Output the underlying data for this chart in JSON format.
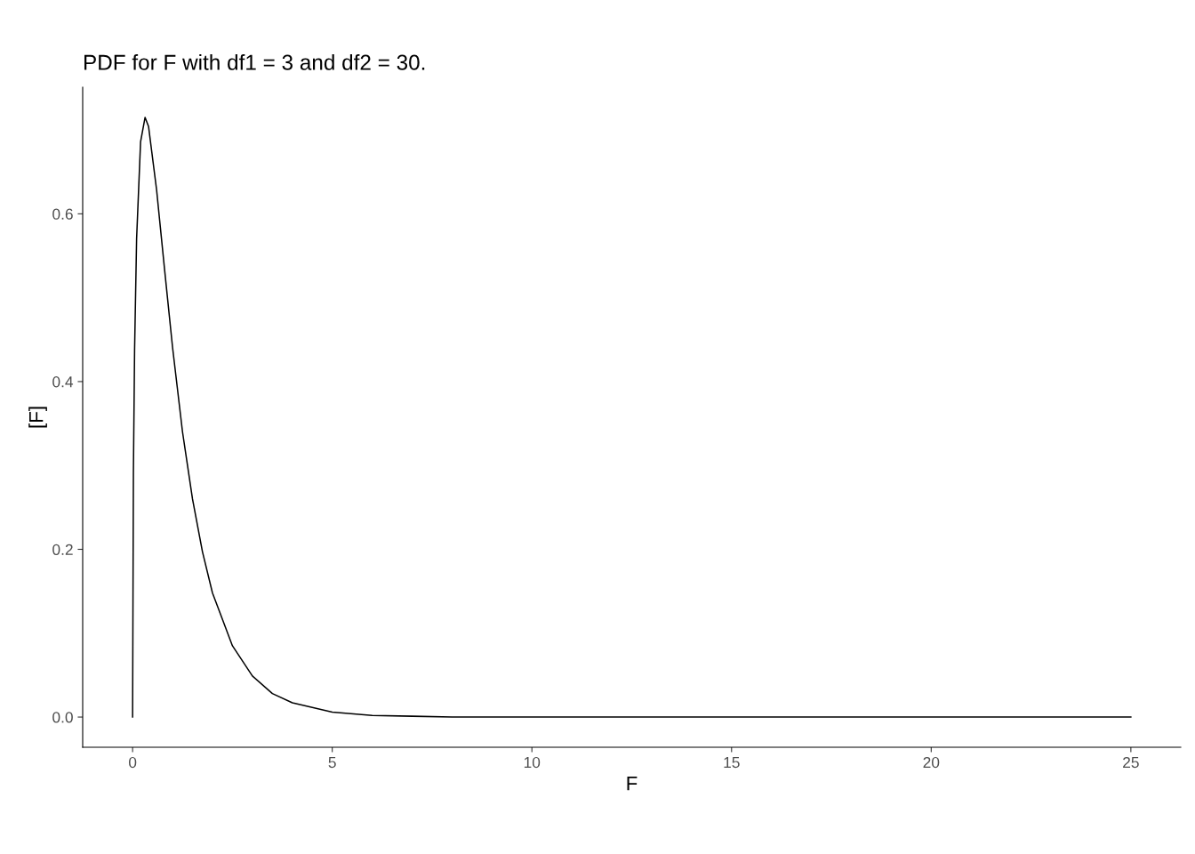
{
  "chart_data": {
    "type": "line",
    "title": "PDF for F with df1 = 3 and df2 = 30.",
    "xlabel": "F",
    "ylabel": "[F]",
    "x": [
      0,
      0.02,
      0.05,
      0.1,
      0.2,
      0.3125,
      0.4,
      0.6,
      0.8,
      1.0,
      1.25,
      1.5,
      1.75,
      2,
      2.5,
      3,
      3.5,
      4,
      5,
      6,
      7,
      8,
      10,
      15,
      20,
      25
    ],
    "series": [
      {
        "color": "#000000",
        "values": [
          0,
          0.291,
          0.438,
          0.57,
          0.686,
          0.715,
          0.704,
          0.629,
          0.534,
          0.441,
          0.34,
          0.26,
          0.197,
          0.148,
          0.085,
          0.049,
          0.028,
          0.017,
          0.006,
          0.002,
          0.001,
          0,
          0,
          0,
          0,
          0
        ]
      }
    ],
    "xlim": [
      -1.25,
      26.25
    ],
    "ylim": [
      -0.036,
      0.751
    ],
    "xticks": [
      0,
      5,
      10,
      15,
      20,
      25
    ],
    "yticks": [
      {
        "value": 0,
        "label": "0.0"
      },
      {
        "value": 0.2,
        "label": "0.2"
      },
      {
        "value": 0.4,
        "label": "0.4"
      },
      {
        "value": 0.6,
        "label": "0.6"
      }
    ],
    "grid": false,
    "marker": "none",
    "line_style": "solid"
  }
}
